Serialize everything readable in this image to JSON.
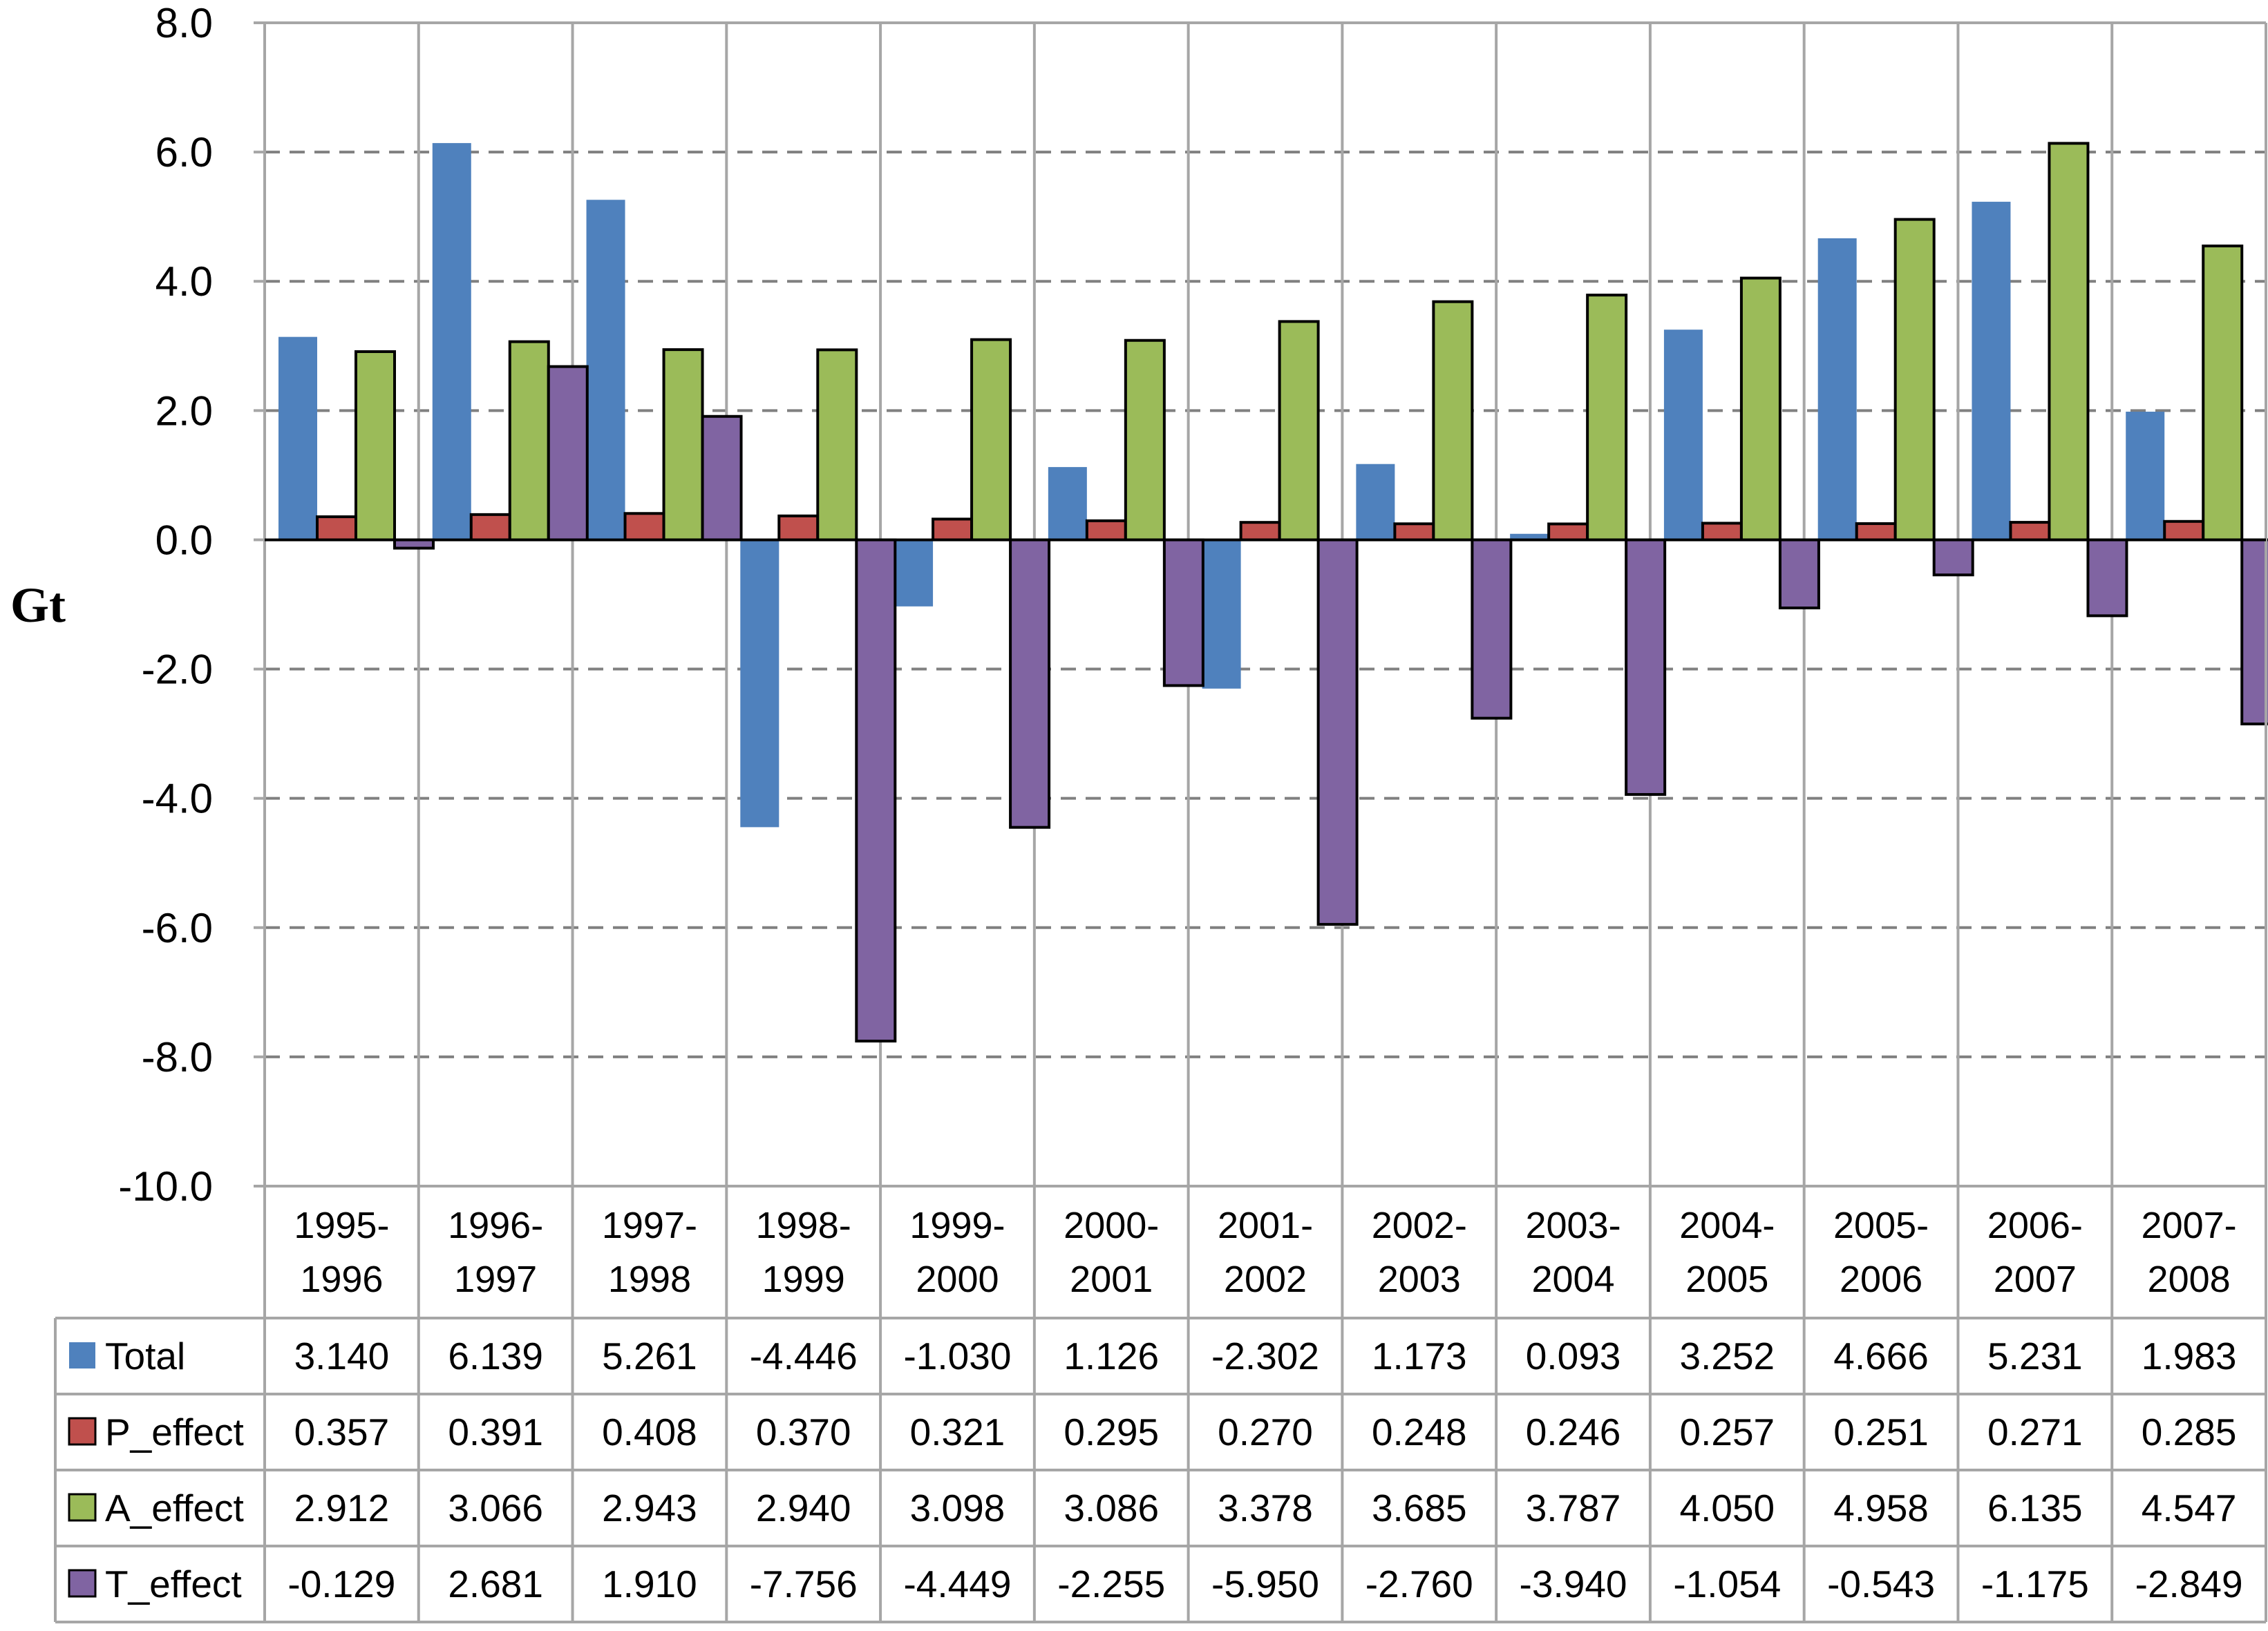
{
  "chart_data": {
    "type": "bar",
    "title": "",
    "xlabel": "",
    "ylabel": "Gt",
    "ylim": [
      -10.0,
      8.0
    ],
    "ytick_step": 2.0,
    "yticks": [
      "8.0",
      "6.0",
      "4.0",
      "2.0",
      "0.0",
      "-2.0",
      "-4.0",
      "-6.0",
      "-8.0",
      "-10.0"
    ],
    "grid": true,
    "legend": "data-table-left",
    "categories": [
      [
        "1995-",
        "1996"
      ],
      [
        "1996-",
        "1997"
      ],
      [
        "1997-",
        "1998"
      ],
      [
        "1998-",
        "1999"
      ],
      [
        "1999-",
        "2000"
      ],
      [
        "2000-",
        "2001"
      ],
      [
        "2001-",
        "2002"
      ],
      [
        "2002-",
        "2003"
      ],
      [
        "2003-",
        "2004"
      ],
      [
        "2004-",
        "2005"
      ],
      [
        "2005-",
        "2006"
      ],
      [
        "2006-",
        "2007"
      ],
      [
        "2007-",
        "2008"
      ]
    ],
    "series": [
      {
        "name": "Total",
        "color": "#4F81BD",
        "border": "none",
        "values": [
          3.14,
          6.139,
          5.261,
          -4.446,
          -1.03,
          1.126,
          -2.302,
          1.173,
          0.093,
          3.252,
          4.666,
          5.231,
          1.983
        ],
        "labels": [
          "3.140",
          "6.139",
          "5.261",
          "-4.446",
          "-1.030",
          "1.126",
          "-2.302",
          "1.173",
          "0.093",
          "3.252",
          "4.666",
          "5.231",
          "1.983"
        ]
      },
      {
        "name": "P_effect",
        "color": "#C0504D",
        "border": "#000000",
        "values": [
          0.357,
          0.391,
          0.408,
          0.37,
          0.321,
          0.295,
          0.27,
          0.248,
          0.246,
          0.257,
          0.251,
          0.271,
          0.285
        ],
        "labels": [
          "0.357",
          "0.391",
          "0.408",
          "0.370",
          "0.321",
          "0.295",
          "0.270",
          "0.248",
          "0.246",
          "0.257",
          "0.251",
          "0.271",
          "0.285"
        ]
      },
      {
        "name": "A_effect",
        "color": "#9BBB59",
        "border": "#000000",
        "values": [
          2.912,
          3.066,
          2.943,
          2.94,
          3.098,
          3.086,
          3.378,
          3.685,
          3.787,
          4.05,
          4.958,
          6.135,
          4.547
        ],
        "labels": [
          "2.912",
          "3.066",
          "2.943",
          "2.940",
          "3.098",
          "3.086",
          "3.378",
          "3.685",
          "3.787",
          "4.050",
          "4.958",
          "6.135",
          "4.547"
        ]
      },
      {
        "name": "T_effect",
        "color": "#8064A2",
        "border": "#000000",
        "values": [
          -0.129,
          2.681,
          1.91,
          -7.756,
          -4.449,
          -2.255,
          -5.95,
          -2.76,
          -3.94,
          -1.054,
          -0.543,
          -1.175,
          -2.849
        ],
        "labels": [
          "-0.129",
          "2.681",
          "1.910",
          "-7.756",
          "-4.449",
          "-2.255",
          "-5.950",
          "-2.760",
          "-3.940",
          "-1.054",
          "-0.543",
          "-1.175",
          "-2.849"
        ]
      }
    ]
  }
}
